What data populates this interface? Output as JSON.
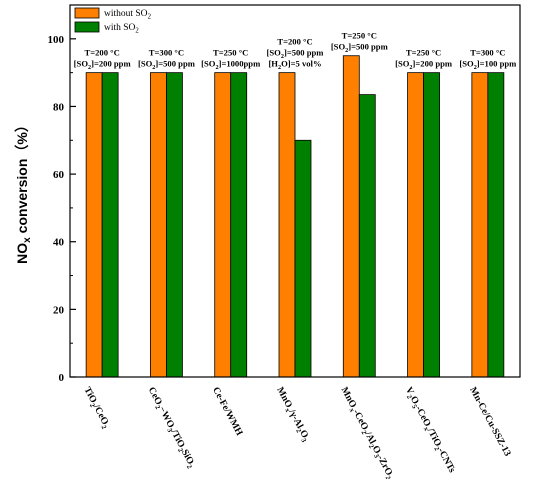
{
  "chart_data": {
    "type": "bar",
    "ylabel": "NOx conversion（%）",
    "ylim": [
      0,
      110
    ],
    "yticks": [
      0,
      20,
      40,
      60,
      80,
      100
    ],
    "legend": {
      "placement": "top-left",
      "entries": [
        "without SO2",
        "with SO2"
      ]
    },
    "categories": [
      "TiO2/CeO2",
      "CeO2−WO3/TiO2SiO2",
      "Ce-Fe/WMH",
      "MnOx/γ-Al2O3",
      "MnOx-CeO2/Al2O3-ZrO2",
      "V2O5-CeOx/TiO2-CNTs",
      "Mn-Ce/Cu-SSZ-13"
    ],
    "series": [
      {
        "name": "without SO2",
        "color": "#ff8000",
        "values": [
          90,
          90,
          90,
          90,
          95,
          90,
          90
        ]
      },
      {
        "name": "with SO2",
        "color": "#008000",
        "values": [
          90,
          90,
          90,
          70,
          83.5,
          90,
          90
        ]
      }
    ],
    "annotations": [
      [
        "T=200 °C",
        "[SO2]=200 ppm"
      ],
      [
        "T=300 °C",
        "[SO2]=500 ppm"
      ],
      [
        "T=250 °C",
        "[SO2]=1000ppm"
      ],
      [
        "T=200 °C",
        "[SO2]=500 ppm",
        "[H2O]=5 vol%"
      ],
      [
        "T=250 °C",
        "[SO2]=500 ppm"
      ],
      [
        "T=250 °C",
        "[SO2]=200 ppm"
      ],
      [
        "T=300 °C",
        "[SO2]=100 ppm"
      ]
    ]
  }
}
